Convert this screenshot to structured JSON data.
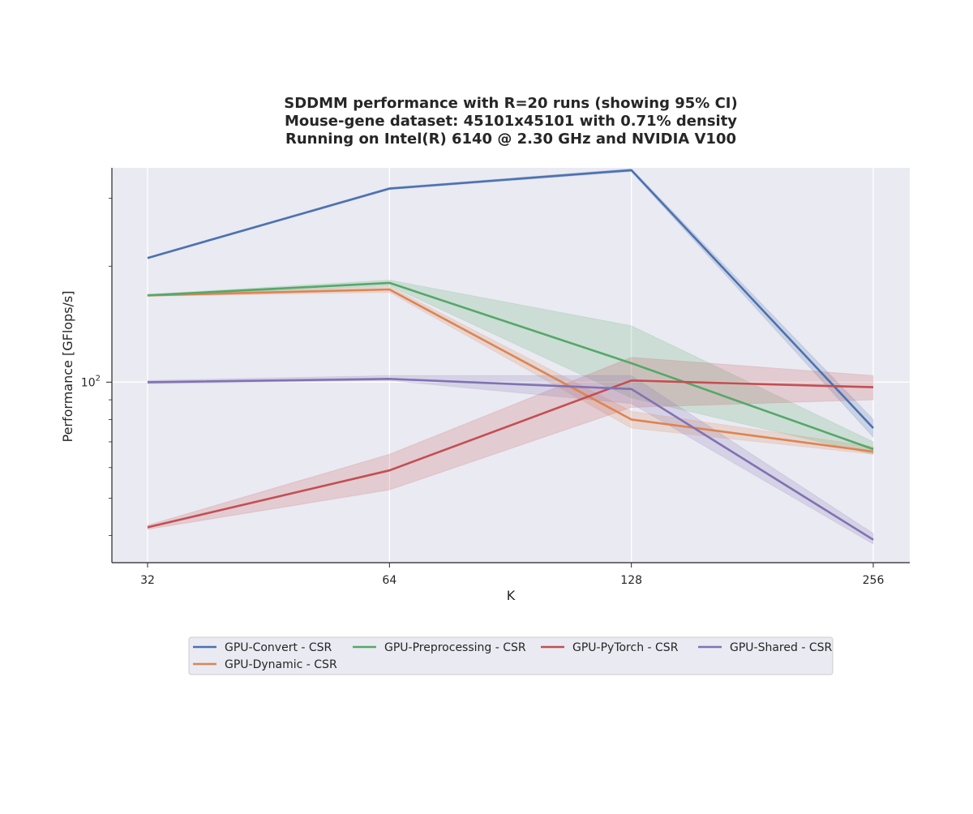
{
  "chart_data": {
    "type": "line",
    "title": "SDDMM performance with R=20 runs (showing 95% CI)",
    "subtitle": [
      "Mouse-gene dataset: 45101x45101 with 0.71% density",
      "Running on Intel(R) 6140 @ 2.30 GHz and NVIDIA V100"
    ],
    "xlabel": "K",
    "ylabel": "Performance [GFlops/s]",
    "x": [
      32,
      64,
      128,
      256
    ],
    "x_scale": "log2",
    "y_scale": "log10",
    "ylim": [
      34,
      360
    ],
    "y_major_tick": {
      "value": 100,
      "base": "10",
      "exponent": "2"
    },
    "y_minor_ticks": [
      40,
      50,
      60,
      70,
      80,
      90,
      200,
      300
    ],
    "grid": true,
    "legend_position": "bottom-center",
    "series": [
      {
        "name": "GPU-Convert - CSR",
        "color": "#4c72b0",
        "values": [
          210,
          318,
          355,
          76
        ],
        "ci_low": [
          209,
          316,
          352,
          72
        ],
        "ci_high": [
          211,
          320,
          358,
          80
        ]
      },
      {
        "name": "GPU-Dynamic - CSR",
        "color": "#dd8452",
        "values": [
          168,
          174,
          80,
          66
        ],
        "ci_low": [
          167,
          171,
          76,
          65
        ],
        "ci_high": [
          169,
          177,
          84,
          68
        ]
      },
      {
        "name": "GPU-Preprocessing - CSR",
        "color": "#55a868",
        "values": [
          168,
          181,
          112,
          67
        ],
        "ci_low": [
          167,
          178,
          91,
          65
        ],
        "ci_high": [
          169,
          184,
          140,
          70
        ]
      },
      {
        "name": "GPU-PyTorch - CSR",
        "color": "#c44e52",
        "values": [
          42,
          59,
          101,
          97
        ],
        "ci_low": [
          41.5,
          52.5,
          86,
          90
        ],
        "ci_high": [
          42.5,
          65,
          116,
          104
        ]
      },
      {
        "name": "GPU-Shared - CSR",
        "color": "#8172b3",
        "values": [
          100,
          102,
          96,
          39
        ],
        "ci_low": [
          99,
          101,
          88,
          38
        ],
        "ci_high": [
          101,
          104,
          104,
          40.5
        ]
      }
    ]
  }
}
